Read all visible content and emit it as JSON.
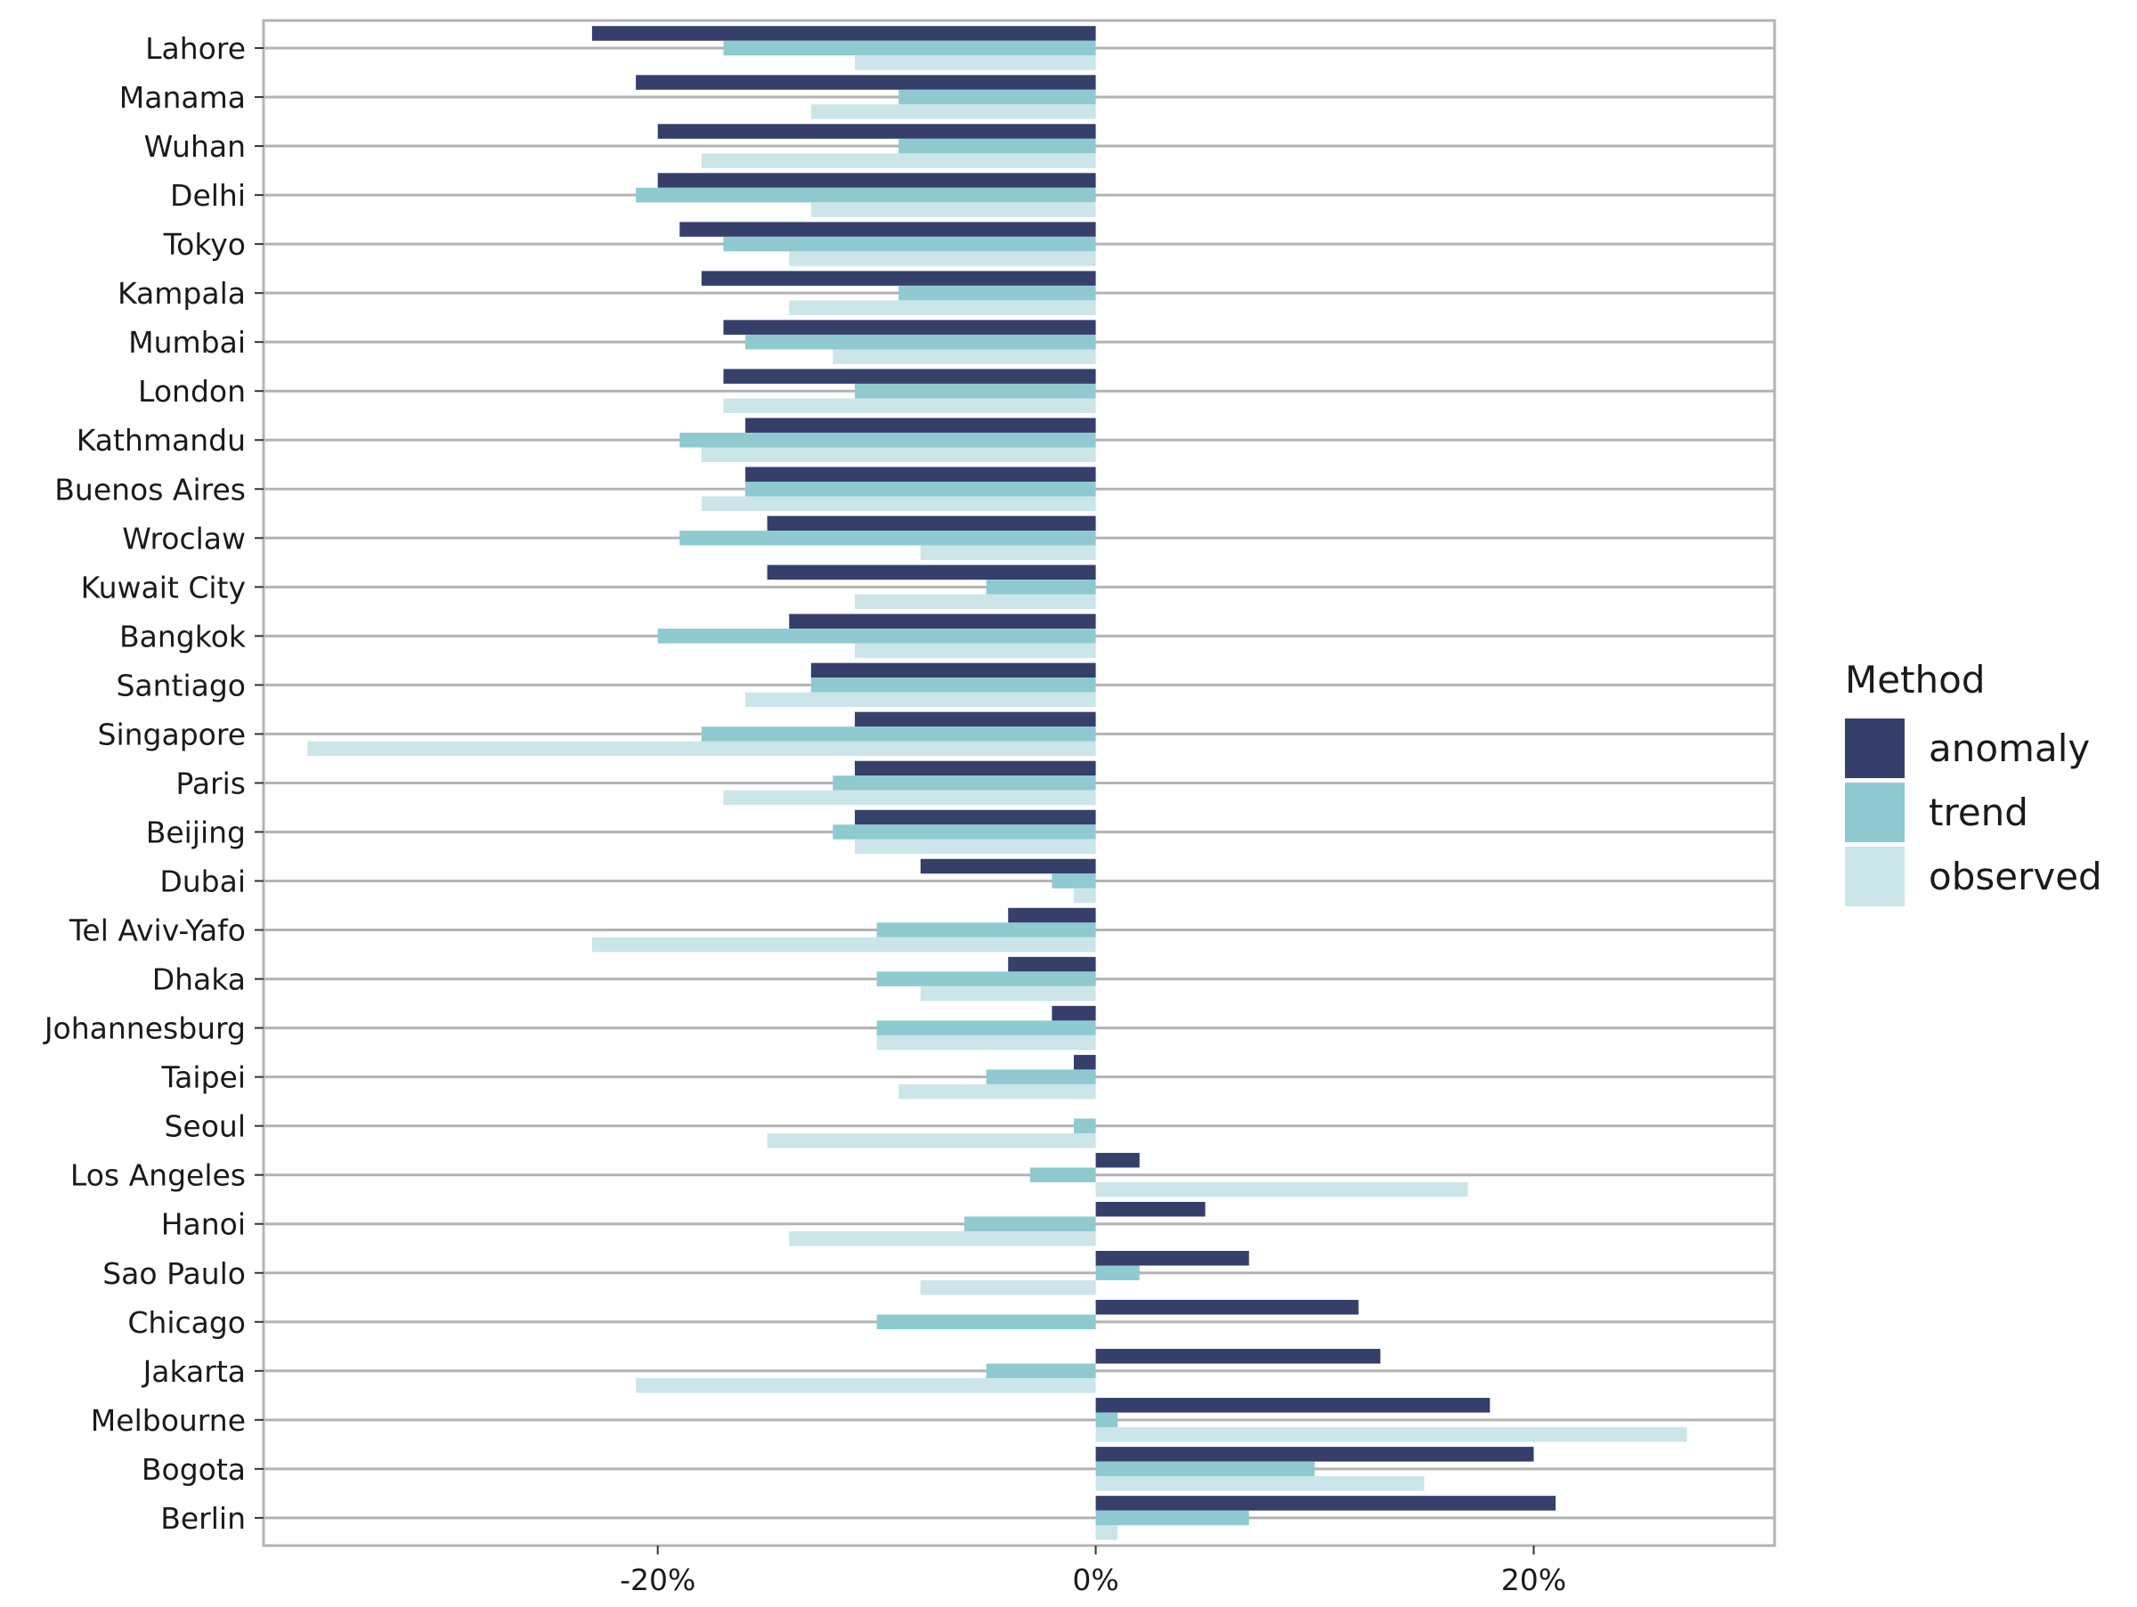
{
  "chart_data": {
    "type": "bar",
    "orientation": "horizontal",
    "title": "",
    "xlabel": "",
    "ylabel": "",
    "x_tick_values": [
      -20,
      0,
      20
    ],
    "x_tick_labels": [
      "-20%",
      "0%",
      "20%"
    ],
    "xlim": [
      -38,
      31
    ],
    "grid": "horizontal lines at each category",
    "legend_position": "right",
    "legend_title": "Method",
    "categories": [
      "Lahore",
      "Manama",
      "Wuhan",
      "Delhi",
      "Tokyo",
      "Kampala",
      "Mumbai",
      "London",
      "Kathmandu",
      "Buenos Aires",
      "Wroclaw",
      "Kuwait City",
      "Bangkok",
      "Santiago",
      "Singapore",
      "Paris",
      "Beijing",
      "Dubai",
      "Tel Aviv-Yafo",
      "Dhaka",
      "Johannesburg",
      "Taipei",
      "Seoul",
      "Los Angeles",
      "Hanoi",
      "Sao Paulo",
      "Chicago",
      "Jakarta",
      "Melbourne",
      "Bogota",
      "Berlin"
    ],
    "series": [
      {
        "name": "anomaly",
        "color": "#353f6a",
        "values": [
          -23,
          -21,
          -20,
          -20,
          -19,
          -18,
          -17,
          -17,
          -16,
          -16,
          -15,
          -15,
          -14,
          -13,
          -11,
          -11,
          -11,
          -8,
          -4,
          -4,
          -2,
          -1,
          0,
          2,
          5,
          7,
          12,
          13,
          18,
          20,
          21
        ]
      },
      {
        "name": "trend",
        "color": "#8ecad0",
        "values": [
          -17,
          -9,
          -9,
          -21,
          -17,
          -9,
          -16,
          -11,
          -19,
          -16,
          -19,
          -5,
          -20,
          -13,
          -18,
          -12,
          -12,
          -2,
          -10,
          -10,
          -10,
          -5,
          -1,
          -3,
          -6,
          2,
          -10,
          -5,
          1,
          10,
          7
        ]
      },
      {
        "name": "observed",
        "color": "#cce5e9",
        "values": [
          -11,
          -13,
          -18,
          -13,
          -14,
          -14,
          -12,
          -17,
          -18,
          -18,
          -8,
          -11,
          -11,
          -16,
          -36,
          -17,
          -11,
          -1,
          -23,
          -8,
          -10,
          -9,
          -15,
          17,
          -14,
          -8,
          0,
          -21,
          27,
          15,
          1
        ]
      }
    ]
  }
}
